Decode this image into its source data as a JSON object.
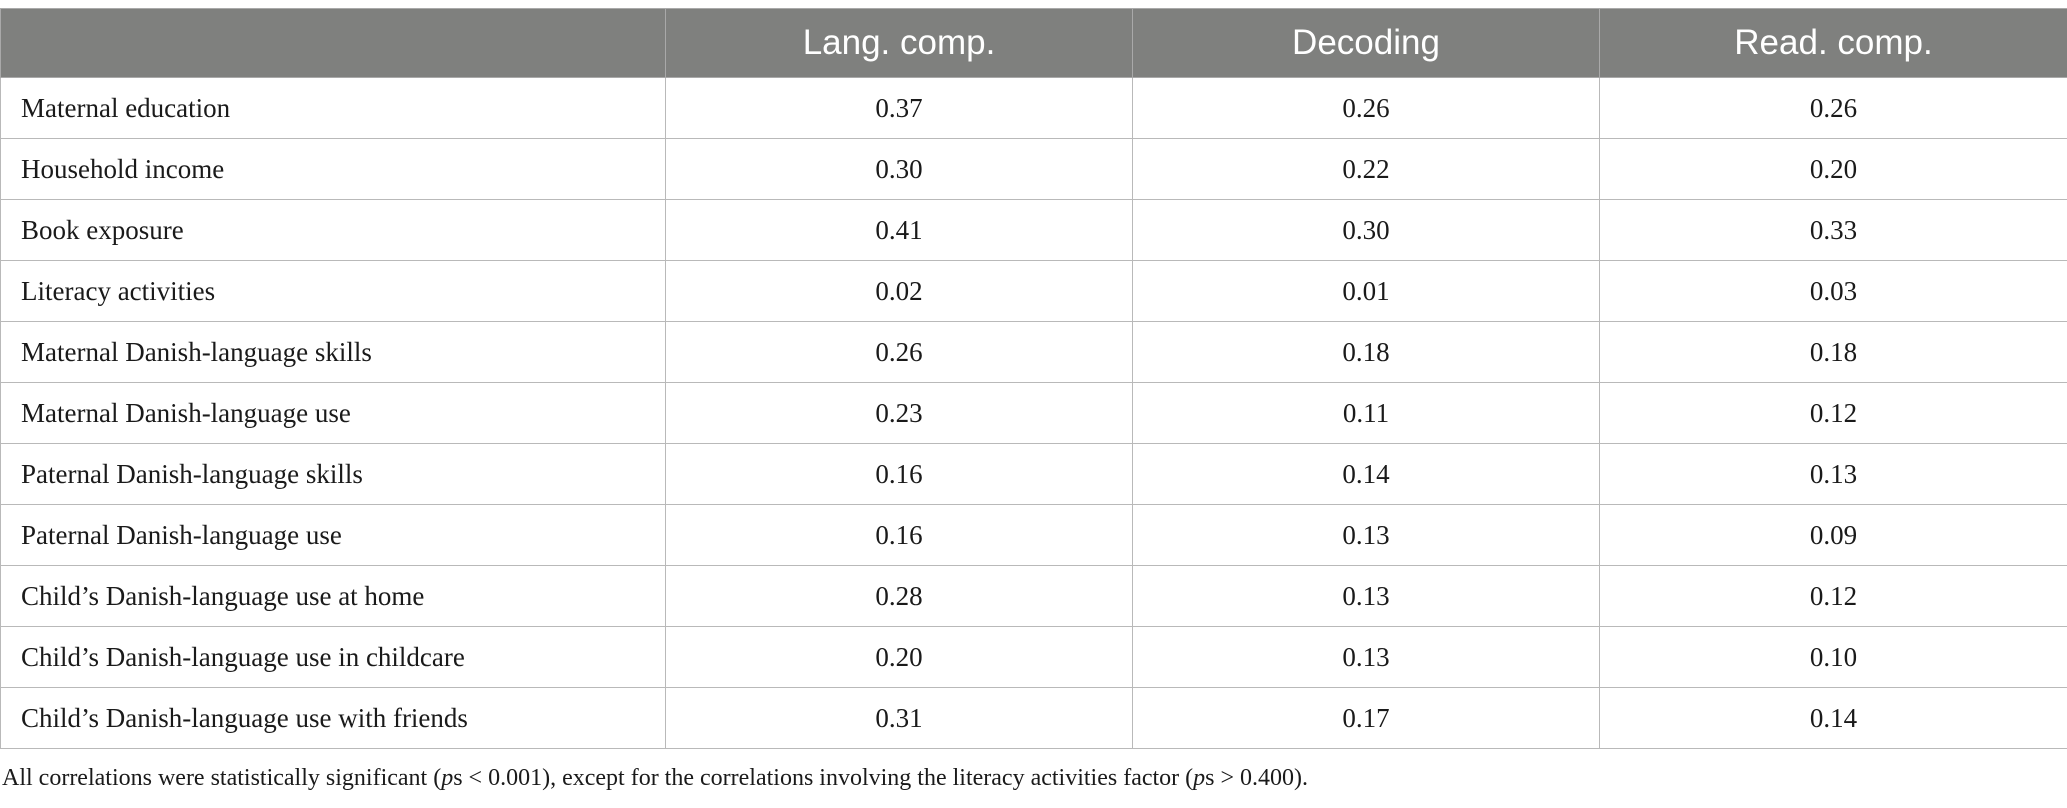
{
  "table": {
    "headers": [
      "",
      "Lang. comp.",
      "Decoding",
      "Read. comp."
    ],
    "rows": [
      {
        "label": "Maternal education",
        "values": [
          "0.37",
          "0.26",
          "0.26"
        ]
      },
      {
        "label": "Household income",
        "values": [
          "0.30",
          "0.22",
          "0.20"
        ]
      },
      {
        "label": "Book exposure",
        "values": [
          "0.41",
          "0.30",
          "0.33"
        ]
      },
      {
        "label": "Literacy activities",
        "values": [
          "0.02",
          "0.01",
          "0.03"
        ]
      },
      {
        "label": "Maternal Danish-language skills",
        "values": [
          "0.26",
          "0.18",
          "0.18"
        ]
      },
      {
        "label": "Maternal Danish-language use",
        "values": [
          "0.23",
          "0.11",
          "0.12"
        ]
      },
      {
        "label": "Paternal Danish-language skills",
        "values": [
          "0.16",
          "0.14",
          "0.13"
        ]
      },
      {
        "label": "Paternal Danish-language use",
        "values": [
          "0.16",
          "0.13",
          "0.09"
        ]
      },
      {
        "label": "Child’s Danish-language use at home",
        "values": [
          "0.28",
          "0.13",
          "0.12"
        ]
      },
      {
        "label": "Child’s Danish-language use in childcare",
        "values": [
          "0.20",
          "0.13",
          "0.10"
        ]
      },
      {
        "label": "Child’s Danish-language use with friends",
        "values": [
          "0.31",
          "0.17",
          "0.14"
        ]
      }
    ]
  },
  "footnote": {
    "part1": "All correlations were statistically significant (",
    "ps1": "p",
    "part2": "s < 0.001), except for the correlations involving the literacy activities factor (",
    "ps2": "p",
    "part3": "s > 0.400)."
  },
  "colors": {
    "header_bg": "#7f807e",
    "header_text": "#ffffff",
    "border": "#b9b9b9"
  }
}
